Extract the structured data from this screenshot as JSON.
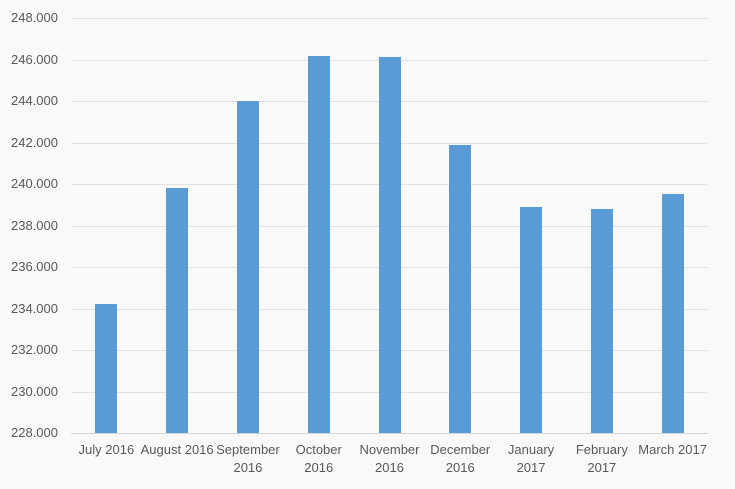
{
  "chart_data": {
    "type": "bar",
    "title": "",
    "xlabel": "",
    "ylabel": "",
    "categories": [
      "July 2016",
      "August 2016",
      "September 2016",
      "October 2016",
      "November 2016",
      "December 2016",
      "January 2017",
      "February 2017",
      "March 2017"
    ],
    "x_tick_lines": [
      [
        "July 2016"
      ],
      [
        "August 2016"
      ],
      [
        "September",
        "2016"
      ],
      [
        "October",
        "2016"
      ],
      [
        "November",
        "2016"
      ],
      [
        "December",
        "2016"
      ],
      [
        "January",
        "2017"
      ],
      [
        "February",
        "2017"
      ],
      [
        "March 2017"
      ]
    ],
    "values": [
      234200,
      239800,
      244000,
      246150,
      246100,
      241900,
      238900,
      238800,
      239500
    ],
    "ylim": [
      228000,
      248000
    ],
    "y_tick_step": 2000,
    "y_tick_labels": [
      "228.000",
      "230.000",
      "232.000",
      "234.000",
      "236.000",
      "238.000",
      "240.000",
      "242.000",
      "244.000",
      "246.000",
      "248.000"
    ],
    "grid": true,
    "legend": false
  },
  "colors": {
    "background": "#f9f9f9",
    "gridline": "#e2e2e2",
    "axis_line": "#d5d5d5",
    "text": "#595959",
    "bar": "#5b9bd5"
  }
}
